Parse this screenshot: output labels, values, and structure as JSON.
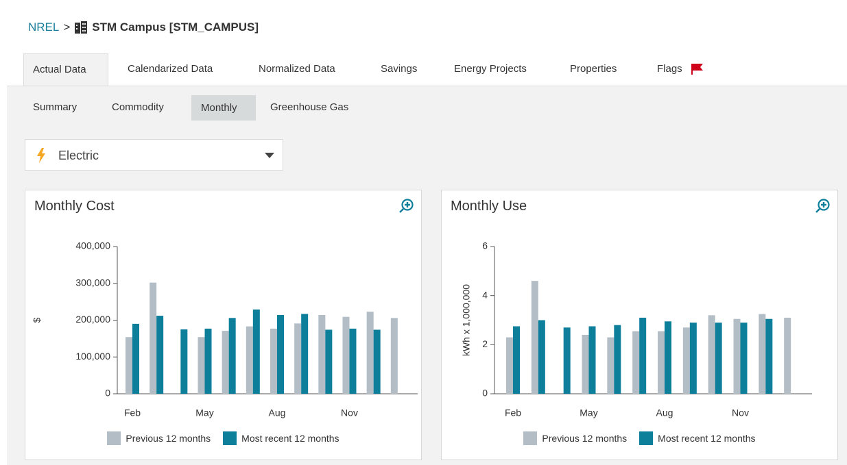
{
  "breadcrumb": {
    "root": "NREL",
    "separator": ">",
    "name": "STM Campus [STM_CAMPUS]"
  },
  "tabs": [
    "Actual Data",
    "Calendarized Data",
    "Normalized Data",
    "Savings",
    "Energy Projects",
    "Properties",
    "Flags"
  ],
  "subtabs": [
    "Summary",
    "Commodity",
    "Monthly",
    "Greenhouse Gas"
  ],
  "dropdown": {
    "value": "Electric"
  },
  "chart_data": [
    {
      "type": "bar",
      "title": "Monthly Cost",
      "y_label": "$",
      "categories": [
        "Feb",
        null,
        null,
        "May",
        null,
        null,
        "Aug",
        null,
        null,
        "Nov",
        null,
        null
      ],
      "series": [
        {
          "name": "Previous 12 months",
          "color": "#b2bdc6",
          "values": [
            154000,
            302000,
            null,
            154000,
            171000,
            183000,
            177000,
            191000,
            214000,
            209000,
            223000,
            206000
          ]
        },
        {
          "name": "Most recent 12 months",
          "color": "#0e7f9b",
          "values": [
            190000,
            212000,
            175000,
            177000,
            206000,
            229000,
            214000,
            217000,
            174000,
            177000,
            174000,
            null
          ]
        }
      ],
      "ylim": [
        0,
        400000
      ],
      "yticks": [
        0,
        {
          "value": 100000,
          "label": "100,000"
        },
        {
          "value": 200000,
          "label": "200,000"
        },
        {
          "value": 300000,
          "label": "300,000"
        },
        {
          "value": 400000,
          "label": "400,000"
        }
      ],
      "legend": "bottom"
    },
    {
      "type": "bar",
      "title": "Monthly Use",
      "y_label": "kWh x 1,000,000",
      "categories": [
        "Feb",
        null,
        null,
        "May",
        null,
        null,
        "Aug",
        null,
        null,
        "Nov",
        null,
        null
      ],
      "series": [
        {
          "name": "Previous 12 months",
          "color": "#b2bdc6",
          "values": [
            2.3,
            4.6,
            null,
            2.4,
            2.3,
            2.55,
            2.55,
            2.7,
            3.2,
            3.05,
            3.25,
            3.1
          ]
        },
        {
          "name": "Most recent 12 months",
          "color": "#0e7f9b",
          "values": [
            2.75,
            3.0,
            2.7,
            2.75,
            2.8,
            3.1,
            2.95,
            2.9,
            2.9,
            2.9,
            3.05,
            null
          ]
        }
      ],
      "ylim": [
        0,
        6
      ],
      "yticks": [
        0,
        2,
        4,
        6
      ],
      "legend": "bottom"
    }
  ]
}
